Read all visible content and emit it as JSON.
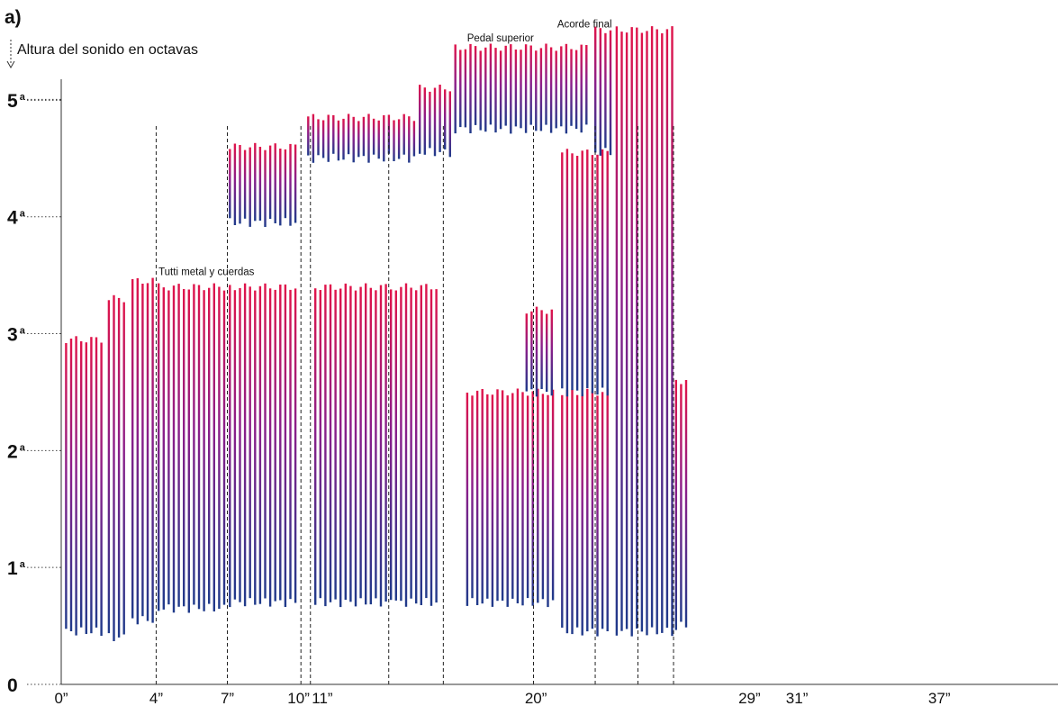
{
  "chart_data": {
    "type": "bar",
    "panel_label": "a)",
    "ylabel": "Altura del sonido en octavas",
    "ylim": [
      0,
      5.7
    ],
    "xlim": [
      0,
      42
    ],
    "y_ticks": [
      {
        "value": 0,
        "num": "0",
        "sup": ""
      },
      {
        "value": 1,
        "num": "1",
        "sup": "a"
      },
      {
        "value": 2,
        "num": "2",
        "sup": "a"
      },
      {
        "value": 3,
        "num": "3",
        "sup": "a"
      },
      {
        "value": 4,
        "num": "4",
        "sup": "a"
      },
      {
        "value": 5,
        "num": "5",
        "sup": "a"
      }
    ],
    "x_ticks": [
      {
        "value": 0,
        "label": "0”"
      },
      {
        "value": 4,
        "label": "4”"
      },
      {
        "value": 7,
        "label": "7”"
      },
      {
        "value": 10,
        "label": "10”"
      },
      {
        "value": 11,
        "label": "11”"
      },
      {
        "value": 20,
        "label": "20”"
      },
      {
        "value": 29,
        "label": "29”"
      },
      {
        "value": 31,
        "label": "31”"
      },
      {
        "value": 37,
        "label": "37”"
      }
    ],
    "dashed_lines_x": [
      4,
      7,
      10.1,
      10.5,
      13.8,
      16.1,
      19.9,
      22.5,
      24.3,
      25.8
    ],
    "colors": {
      "high": "#e0144a",
      "mid": "#8a1f8a",
      "low": "#1f3a8a",
      "axis": "#333333"
    },
    "annotations": [
      {
        "text": "Tutti metal y cuerdas",
        "x": 4.1,
        "y": 3.5
      },
      {
        "text": "Pedal superior",
        "x": 17.1,
        "y": 5.5
      },
      {
        "text": "Acorde final",
        "x": 20.9,
        "y": 5.62
      }
    ],
    "segments": [
      {
        "x_start": 0.1,
        "x_end": 1.9,
        "low": 0.45,
        "high": 2.95
      },
      {
        "x_start": 1.9,
        "x_end": 2.9,
        "low": 0.4,
        "high": 3.3
      },
      {
        "x_start": 2.9,
        "x_end": 4.0,
        "low": 0.55,
        "high": 3.45
      },
      {
        "x_start": 4.0,
        "x_end": 7.0,
        "low": 0.65,
        "high": 3.4
      },
      {
        "x_start": 7.0,
        "x_end": 10.0,
        "low": 0.7,
        "high": 3.4
      },
      {
        "x_start": 10.6,
        "x_end": 14.0,
        "low": 0.7,
        "high": 3.4
      },
      {
        "x_start": 14.0,
        "x_end": 16.1,
        "low": 0.7,
        "high": 3.4
      },
      {
        "x_start": 7.0,
        "x_end": 10.0,
        "low": 3.95,
        "high": 4.6
      },
      {
        "x_start": 10.3,
        "x_end": 15.0,
        "low": 4.5,
        "high": 4.85
      },
      {
        "x_start": 15.0,
        "x_end": 16.5,
        "low": 4.55,
        "high": 5.1
      },
      {
        "x_start": 16.5,
        "x_end": 22.4,
        "low": 4.75,
        "high": 5.45
      },
      {
        "x_start": 17.0,
        "x_end": 21.0,
        "low": 0.7,
        "high": 2.5
      },
      {
        "x_start": 19.5,
        "x_end": 20.8,
        "low": 2.5,
        "high": 3.2
      },
      {
        "x_start": 21.0,
        "x_end": 23.3,
        "low": 0.45,
        "high": 2.5
      },
      {
        "x_start": 21.0,
        "x_end": 23.3,
        "low": 2.5,
        "high": 4.55
      },
      {
        "x_start": 22.4,
        "x_end": 23.3,
        "low": 4.55,
        "high": 5.6
      },
      {
        "x_start": 23.3,
        "x_end": 25.9,
        "low": 0.45,
        "high": 5.6
      },
      {
        "x_start": 25.8,
        "x_end": 26.5,
        "low": 0.5,
        "high": 2.6
      }
    ]
  }
}
